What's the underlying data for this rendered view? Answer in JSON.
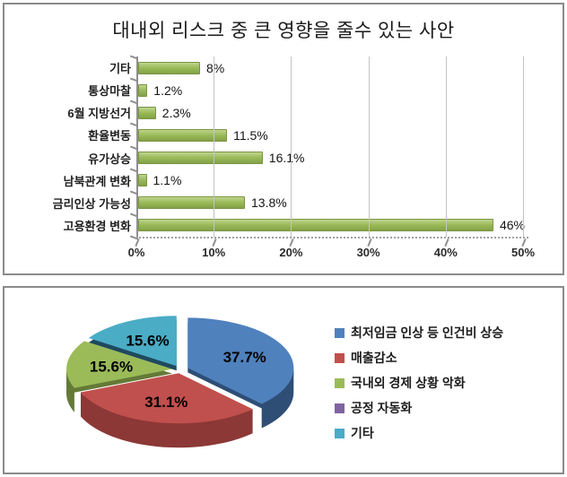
{
  "chart_data": [
    {
      "type": "bar",
      "orientation": "horizontal",
      "title": "대내외 리스크 중 큰 영향을 줄수 있는 사안",
      "categories": [
        "기타",
        "통상마찰",
        "6월 지방선거",
        "환율변동",
        "유가상승",
        "남북관계 변화",
        "금리인상 가능성",
        "고용환경 변화"
      ],
      "values": [
        8,
        1.2,
        2.3,
        11.5,
        16.1,
        1.1,
        13.8,
        46
      ],
      "value_labels": [
        "8%",
        "1.2%",
        "2.3%",
        "11.5%",
        "16.1%",
        "1.1%",
        "13.8%",
        "46%"
      ],
      "x_ticks": [
        "0%",
        "10%",
        "20%",
        "30%",
        "40%",
        "50%"
      ],
      "xlim": [
        0,
        50
      ],
      "grid": true,
      "legend": false,
      "bar_color": "#9bbb59"
    },
    {
      "type": "pie",
      "style": "3d-exploded",
      "legend_position": "right",
      "labels": [
        "최저임금 인상 등 인건비 상승",
        "매출감소",
        "국내외 경제 상황 악화",
        "공정 자동화",
        "기타"
      ],
      "values": [
        37.7,
        31.1,
        15.6,
        0,
        15.6
      ],
      "value_labels": [
        "37.7%",
        "31.1%",
        "15.6%",
        "",
        "15.6%"
      ],
      "colors": [
        "#4f81bd",
        "#c0504d",
        "#9bbb59",
        "#8064a2",
        "#4bacc6"
      ],
      "side_colors": [
        "#2e4e76",
        "#8c3836",
        "#647a37",
        "#53416a",
        "#1f4a5e"
      ]
    }
  ]
}
